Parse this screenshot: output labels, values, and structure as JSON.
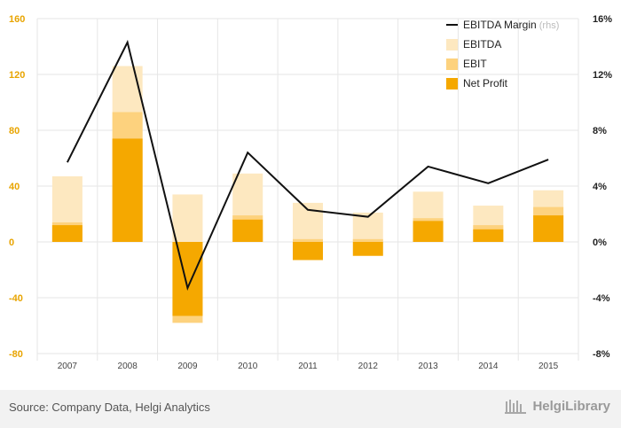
{
  "chart_data": {
    "type": "bar",
    "categories": [
      "2007",
      "2008",
      "2009",
      "2010",
      "2011",
      "2012",
      "2013",
      "2014",
      "2015"
    ],
    "series": [
      {
        "name": "EBITDA",
        "type": "bar",
        "axis": "left",
        "values": [
          47,
          126,
          34,
          49,
          28,
          21,
          36,
          26,
          37
        ]
      },
      {
        "name": "EBIT",
        "type": "bar",
        "axis": "left",
        "values": [
          14,
          93,
          -58,
          19,
          2,
          2,
          17,
          12,
          25
        ]
      },
      {
        "name": "Net Profit",
        "type": "bar",
        "axis": "left",
        "values": [
          12,
          74,
          -53,
          16,
          -13,
          -10,
          15,
          9,
          19
        ]
      },
      {
        "name": "EBITDA Margin",
        "type": "line",
        "axis": "right",
        "values": [
          5.7,
          14.3,
          -3.3,
          6.4,
          2.3,
          1.8,
          5.4,
          4.2,
          5.9
        ]
      }
    ],
    "yleft": {
      "ylim": [
        -80,
        160
      ],
      "ticks": [
        160,
        120,
        80,
        40,
        0,
        -40,
        -80
      ],
      "tick_color": "#e8a400"
    },
    "yright": {
      "ylim": [
        -8,
        16
      ],
      "ticks": [
        "16%",
        "12%",
        "8%",
        "4%",
        "0%",
        "-4%",
        "-8%"
      ]
    },
    "legend": {
      "position": "top-right",
      "items": [
        {
          "label": "EBITDA Margin",
          "note": "(rhs)",
          "kind": "line",
          "color": "#111111"
        },
        {
          "label": "EBITDA",
          "kind": "box",
          "color": "#fde8c0"
        },
        {
          "label": "EBIT",
          "kind": "box",
          "color": "#fdd27e"
        },
        {
          "label": "Net Profit",
          "kind": "box",
          "color": "#f5a800"
        }
      ]
    },
    "colors": {
      "ebitda": "#fde8c0",
      "ebit": "#fdd27e",
      "net_profit": "#f5a800",
      "margin_line": "#111111",
      "grid": "#e6e6e6"
    },
    "grid": true
  },
  "footer": {
    "source": "Source: Company Data, Helgi Analytics",
    "brand": "HelgiLibrary"
  }
}
